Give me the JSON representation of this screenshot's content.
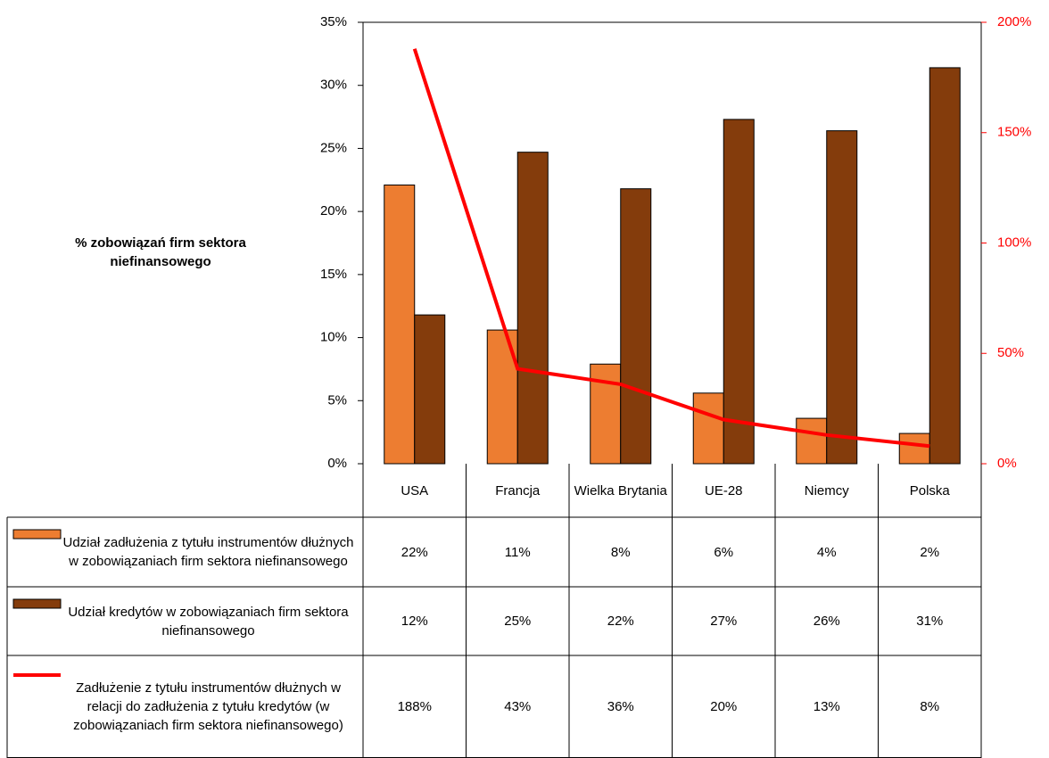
{
  "chart_data": {
    "type": "bar",
    "y_label": "% zobowiązań firm sektora niefinansowego",
    "categories": [
      "USA",
      "Francja",
      "Wielka Brytania",
      "UE-28",
      "Niemcy",
      "Polska"
    ],
    "series": [
      {
        "name": "Udział zadłużenia z tytułu instrumentów dłużnych w zobowiązaniach firm sektora niefinansowego",
        "color": "#ed7d31",
        "type": "bar",
        "values": [
          22.1,
          10.6,
          7.9,
          5.6,
          3.6,
          2.4
        ],
        "value_labels": [
          "22%",
          "11%",
          "8%",
          "6%",
          "4%",
          "2%"
        ]
      },
      {
        "name": "Udział kredytów w zobowiązaniach firm sektora niefinansowego",
        "color": "#843c0c",
        "type": "bar",
        "values": [
          11.8,
          24.7,
          21.8,
          27.3,
          26.4,
          31.4
        ],
        "value_labels": [
          "12%",
          "25%",
          "22%",
          "27%",
          "26%",
          "31%"
        ]
      },
      {
        "name": "Zadłużenie z tytułu instrumentów dłużnych w relacji do zadłużenia z tytułu kredytów (w zobowiązaniach firm sektora niefinansowego)",
        "color": "#ff0000",
        "type": "line",
        "axis": "y2",
        "values": [
          188,
          43,
          36,
          20,
          13,
          8
        ],
        "value_labels": [
          "188%",
          "43%",
          "36%",
          "20%",
          "13%",
          "8%"
        ]
      }
    ],
    "ylim": [
      0,
      35
    ],
    "yticks": [
      {
        "value": 0,
        "label": "0%"
      },
      {
        "value": 5,
        "label": "5%"
      },
      {
        "value": 10,
        "label": "10%"
      },
      {
        "value": 15,
        "label": "15%"
      },
      {
        "value": 20,
        "label": "20%"
      },
      {
        "value": 25,
        "label": "25%"
      },
      {
        "value": 30,
        "label": "30%"
      },
      {
        "value": 35,
        "label": "35%"
      }
    ],
    "y2lim": [
      0,
      200
    ],
    "y2ticks": [
      {
        "value": 0,
        "label": "0%"
      },
      {
        "value": 50,
        "label": "50%"
      },
      {
        "value": 100,
        "label": "100%"
      },
      {
        "value": 150,
        "label": "150%"
      },
      {
        "value": 200,
        "label": "200%"
      }
    ],
    "y2_color": "#ff0000",
    "grid": false
  }
}
